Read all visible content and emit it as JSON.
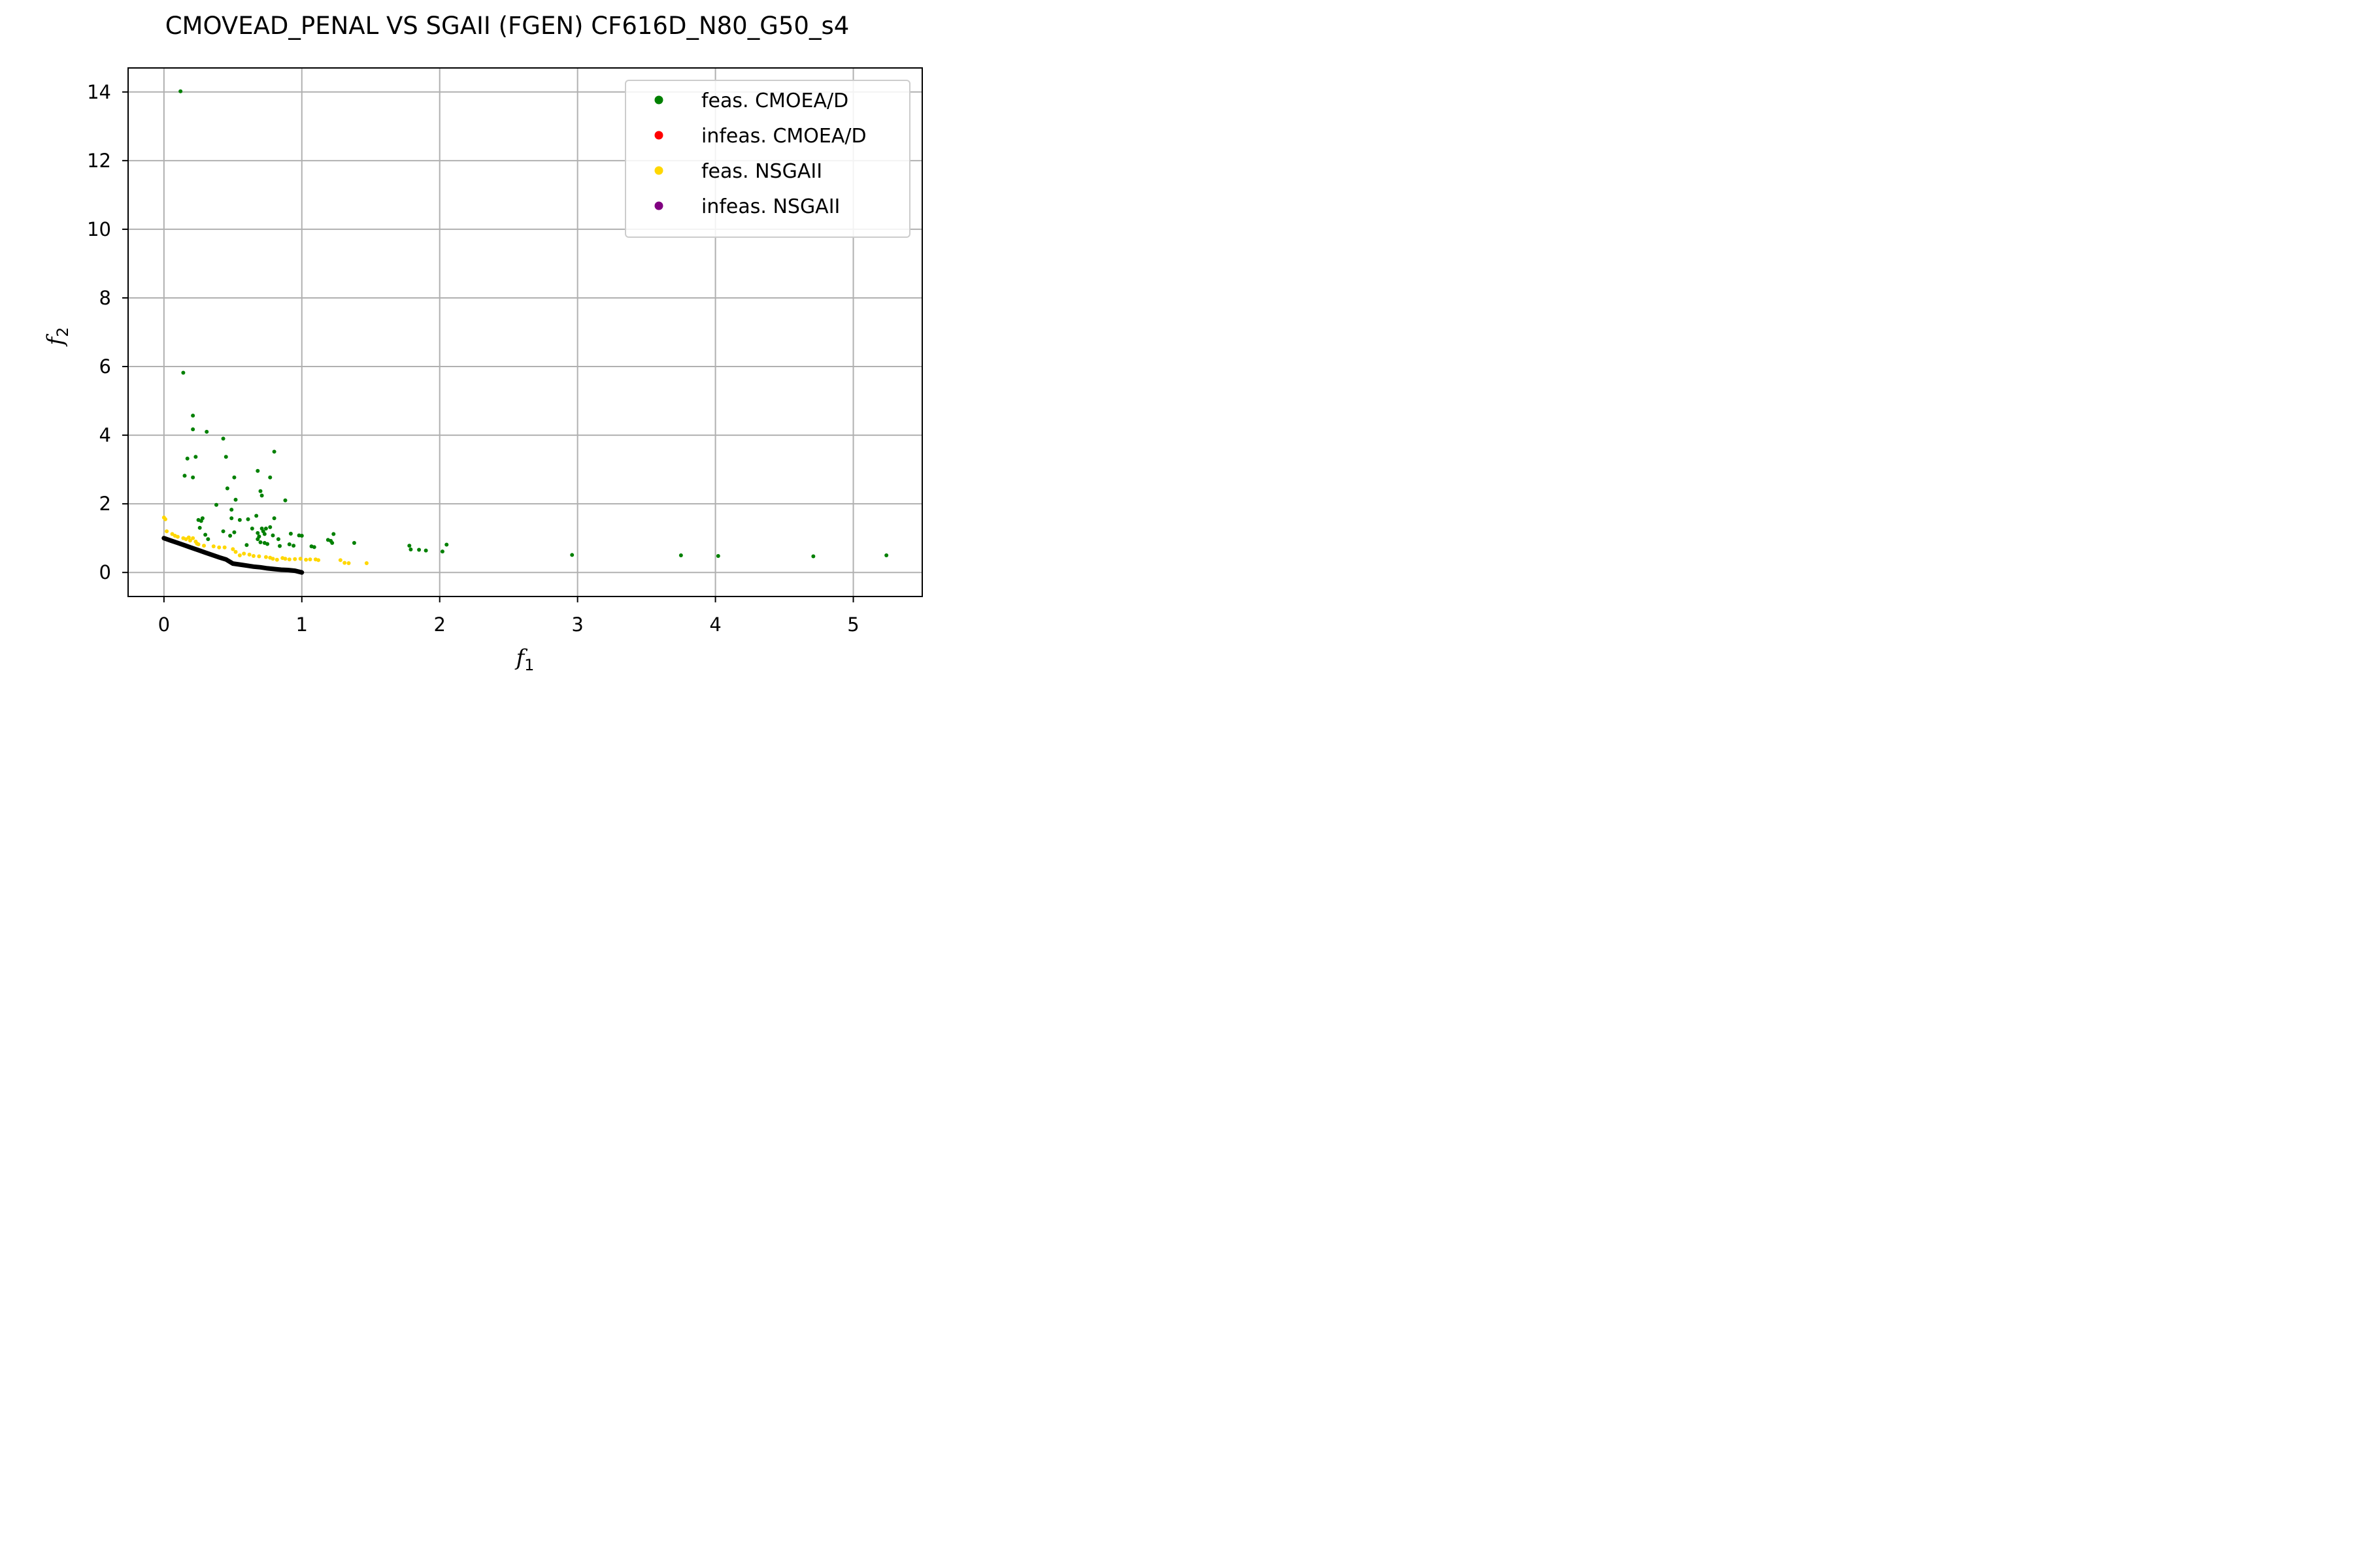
{
  "chart_data": {
    "type": "scatter",
    "title": "CMOVEAD_PENAL VS SGAII (FGEN) CF616D_N80_G50_s4",
    "xlabel": "f",
    "xlabel_sub": "1",
    "ylabel": "f",
    "ylabel_sub": "2",
    "xlim": [
      -0.26,
      5.5
    ],
    "ylim": [
      -0.7,
      14.7
    ],
    "xticks": [
      0,
      1,
      2,
      3,
      4,
      5
    ],
    "yticks": [
      0,
      2,
      4,
      6,
      8,
      10,
      12,
      14
    ],
    "grid": true,
    "legend_position": "top-right",
    "colors": {
      "feas_cmoead": "#008000",
      "infeas_cmoead": "#ff0000",
      "feas_nsgaii": "#ffd700",
      "infeas_nsgaii": "#800080",
      "front": "#000000"
    },
    "legend": [
      {
        "label": "feas. CMOEA/D",
        "color": "#008000"
      },
      {
        "label": "infeas. CMOEA/D",
        "color": "#ff0000"
      },
      {
        "label": "feas. NSGAII",
        "color": "#ffd700"
      },
      {
        "label": "infeas. NSGAII",
        "color": "#800080"
      }
    ],
    "front": [
      [
        0,
        1.0
      ],
      [
        0.05,
        0.93
      ],
      [
        0.1,
        0.86
      ],
      [
        0.15,
        0.79
      ],
      [
        0.2,
        0.72
      ],
      [
        0.25,
        0.65
      ],
      [
        0.3,
        0.58
      ],
      [
        0.35,
        0.51
      ],
      [
        0.4,
        0.44
      ],
      [
        0.45,
        0.38
      ],
      [
        0.5,
        0.26
      ],
      [
        0.55,
        0.23
      ],
      [
        0.6,
        0.2
      ],
      [
        0.65,
        0.17
      ],
      [
        0.7,
        0.15
      ],
      [
        0.75,
        0.12
      ],
      [
        0.8,
        0.1
      ],
      [
        0.85,
        0.08
      ],
      [
        0.9,
        0.07
      ],
      [
        0.95,
        0.05
      ],
      [
        1.0,
        0.0
      ]
    ],
    "series": [
      {
        "name": "feas. CMOEA/D",
        "color": "#008000",
        "points": [
          [
            0.12,
            14.02
          ],
          [
            0.14,
            5.82
          ],
          [
            0.21,
            4.57
          ],
          [
            0.21,
            4.17
          ],
          [
            0.31,
            4.1
          ],
          [
            0.17,
            3.32
          ],
          [
            0.23,
            3.37
          ],
          [
            0.15,
            2.82
          ],
          [
            0.21,
            2.77
          ],
          [
            0.43,
            3.9
          ],
          [
            0.45,
            3.37
          ],
          [
            0.8,
            3.52
          ],
          [
            0.68,
            2.96
          ],
          [
            0.77,
            2.77
          ],
          [
            0.51,
            2.77
          ],
          [
            0.46,
            2.45
          ],
          [
            0.7,
            2.37
          ],
          [
            0.71,
            2.24
          ],
          [
            0.52,
            2.12
          ],
          [
            0.88,
            2.1
          ],
          [
            0.38,
            1.97
          ],
          [
            0.49,
            1.83
          ],
          [
            0.25,
            1.53
          ],
          [
            0.28,
            1.58
          ],
          [
            0.27,
            1.5
          ],
          [
            0.49,
            1.58
          ],
          [
            0.55,
            1.53
          ],
          [
            0.61,
            1.55
          ],
          [
            0.67,
            1.65
          ],
          [
            0.8,
            1.58
          ],
          [
            0.26,
            1.3
          ],
          [
            0.43,
            1.2
          ],
          [
            0.3,
            1.1
          ],
          [
            0.51,
            1.17
          ],
          [
            0.48,
            1.07
          ],
          [
            0.64,
            1.28
          ],
          [
            0.68,
            1.15
          ],
          [
            0.69,
            1.05
          ],
          [
            0.71,
            1.28
          ],
          [
            0.72,
            1.2
          ],
          [
            0.73,
            1.12
          ],
          [
            0.74,
            1.28
          ],
          [
            0.77,
            1.32
          ],
          [
            0.79,
            1.08
          ],
          [
            0.83,
            0.97
          ],
          [
            0.92,
            1.13
          ],
          [
            0.98,
            1.08
          ],
          [
            1.0,
            1.07
          ],
          [
            0.32,
            0.97
          ],
          [
            0.68,
            0.97
          ],
          [
            0.7,
            0.88
          ],
          [
            0.73,
            0.86
          ],
          [
            0.6,
            0.8
          ],
          [
            0.75,
            0.83
          ],
          [
            0.84,
            0.77
          ],
          [
            0.91,
            0.82
          ],
          [
            0.94,
            0.78
          ],
          [
            1.07,
            0.76
          ],
          [
            1.09,
            0.74
          ],
          [
            1.19,
            0.95
          ],
          [
            1.21,
            0.92
          ],
          [
            1.23,
            1.12
          ],
          [
            1.22,
            0.86
          ],
          [
            1.38,
            0.86
          ],
          [
            1.78,
            0.78
          ],
          [
            1.79,
            0.67
          ],
          [
            1.85,
            0.66
          ],
          [
            1.9,
            0.64
          ],
          [
            2.02,
            0.61
          ],
          [
            2.05,
            0.81
          ],
          [
            2.96,
            0.51
          ],
          [
            3.75,
            0.5
          ],
          [
            4.02,
            0.48
          ],
          [
            4.71,
            0.47
          ],
          [
            5.24,
            0.5
          ]
        ]
      },
      {
        "name": "feas. NSGAII",
        "color": "#ffd700",
        "points": [
          [
            0,
            1.6
          ],
          [
            0.01,
            1.55
          ],
          [
            0.02,
            1.2
          ],
          [
            0.06,
            1.12
          ],
          [
            0.08,
            1.07
          ],
          [
            0.1,
            1.04
          ],
          [
            0.14,
            1.0
          ],
          [
            0.16,
            0.97
          ],
          [
            0.18,
            1.02
          ],
          [
            0.19,
            0.93
          ],
          [
            0.21,
            1.0
          ],
          [
            0.23,
            0.9
          ],
          [
            0.24,
            0.84
          ],
          [
            0.25,
            0.82
          ],
          [
            0.29,
            0.78
          ],
          [
            0.36,
            0.76
          ],
          [
            0.4,
            0.73
          ],
          [
            0.44,
            0.73
          ],
          [
            0.5,
            0.68
          ],
          [
            0.52,
            0.6
          ],
          [
            0.55,
            0.5
          ],
          [
            0.58,
            0.55
          ],
          [
            0.62,
            0.52
          ],
          [
            0.65,
            0.48
          ],
          [
            0.69,
            0.47
          ],
          [
            0.74,
            0.45
          ],
          [
            0.77,
            0.43
          ],
          [
            0.79,
            0.4
          ],
          [
            0.82,
            0.37
          ],
          [
            0.86,
            0.42
          ],
          [
            0.88,
            0.4
          ],
          [
            0.91,
            0.38
          ],
          [
            0.95,
            0.39
          ],
          [
            0.99,
            0.4
          ],
          [
            1.03,
            0.37
          ],
          [
            1.06,
            0.38
          ],
          [
            1.1,
            0.38
          ],
          [
            1.12,
            0.36
          ],
          [
            1.28,
            0.36
          ],
          [
            1.31,
            0.28
          ],
          [
            1.34,
            0.27
          ],
          [
            1.47,
            0.27
          ]
        ]
      },
      {
        "name": "infeas. CMOEA/D",
        "color": "#ff0000",
        "points": []
      },
      {
        "name": "infeas. NSGAII",
        "color": "#800080",
        "points": []
      }
    ]
  }
}
